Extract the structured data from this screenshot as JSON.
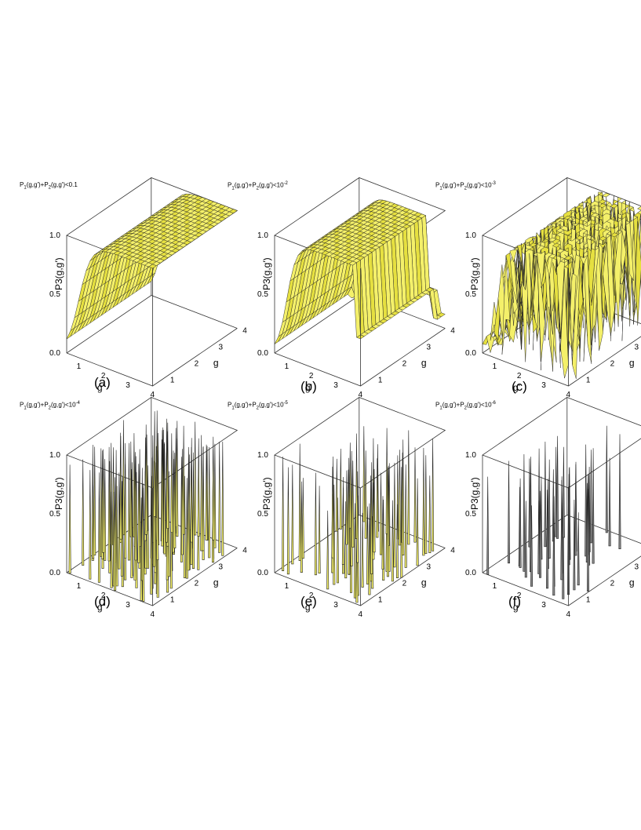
{
  "figure": {
    "panels": [
      {
        "label": "(a)",
        "title_html": "P<sub>1</sub>(g,g')+P<sub>2</sub>(g,g')&lt;0.1",
        "threshold": 0.1
      },
      {
        "label": "(b)",
        "title_html": "P<sub>1</sub>(g,g')+P<sub>2</sub>(g,g')&lt;10<sup>-2</sup>",
        "threshold": 0.01
      },
      {
        "label": "(c)",
        "title_html": "P<sub>1</sub>(g,g')+P<sub>2</sub>(g,g')&lt;10<sup>-3</sup>",
        "threshold": 0.001
      },
      {
        "label": "(d)",
        "title_html": "P<sub>1</sub>(g,g')+P<sub>2</sub>(g,g')&lt;10<sup>-4</sup>",
        "threshold": 0.0001
      },
      {
        "label": "(e)",
        "title_html": "P<sub>1</sub>(g,g')+P<sub>2</sub>(g,g')&lt;10<sup>-5</sup>",
        "threshold": 1e-05
      },
      {
        "label": "(f)",
        "title_html": "P<sub>1</sub>(g,g')+P<sub>2</sub>(g,g')&lt;10<sup>-6</sup>",
        "threshold": 1e-06
      }
    ],
    "xlabel": "g'",
    "ylabel": "g",
    "zlabel": "P3(g,g')",
    "x_ticks": [
      1,
      2,
      3,
      4
    ],
    "y_ticks": [
      1,
      2,
      3,
      4
    ],
    "z_ticks": [
      "0.0",
      "0.5",
      "1.0"
    ],
    "colors": {
      "surface": "#f4f06a",
      "surface_shade": "#e6e040",
      "mesh": "#222222",
      "box": "#333333"
    }
  },
  "chart_data": [
    {
      "type": "surface3d",
      "label": "(a)",
      "xlabel": "g'",
      "ylabel": "g",
      "zlabel": "P3(g,g')",
      "xlim": [
        0.5,
        4
      ],
      "ylim": [
        0.5,
        4
      ],
      "zlim": [
        0,
        1
      ],
      "description_values": {
        "z_at_x_0.5": 0.0,
        "z_plateau": 1.0
      }
    },
    {
      "type": "surface3d",
      "label": "(b)",
      "xlabel": "g'",
      "ylabel": "g",
      "zlabel": "P3(g,g')",
      "xlim": [
        0.5,
        4
      ],
      "ylim": [
        0.5,
        4
      ],
      "zlim": [
        0,
        1
      ]
    },
    {
      "type": "surface3d",
      "label": "(c)",
      "xlabel": "g'",
      "ylabel": "g",
      "zlabel": "P3(g,g')",
      "xlim": [
        0.5,
        4
      ],
      "ylim": [
        0.5,
        4
      ],
      "zlim": [
        0,
        1
      ]
    },
    {
      "type": "surface3d",
      "label": "(d)",
      "xlabel": "g'",
      "ylabel": "g",
      "zlabel": "P3(g,g')",
      "xlim": [
        0.5,
        4
      ],
      "ylim": [
        0.5,
        4
      ],
      "zlim": [
        0,
        1
      ]
    },
    {
      "type": "surface3d",
      "label": "(e)",
      "xlabel": "g'",
      "ylabel": "g",
      "zlabel": "P3(g,g')",
      "xlim": [
        0.5,
        4
      ],
      "ylim": [
        0.5,
        4
      ],
      "zlim": [
        0,
        1
      ]
    },
    {
      "type": "surface3d",
      "label": "(f)",
      "xlabel": "g'",
      "ylabel": "g",
      "zlabel": "P3(g,g')",
      "xlim": [
        0.5,
        4
      ],
      "ylim": [
        0.5,
        4
      ],
      "zlim": [
        0,
        1
      ]
    }
  ]
}
